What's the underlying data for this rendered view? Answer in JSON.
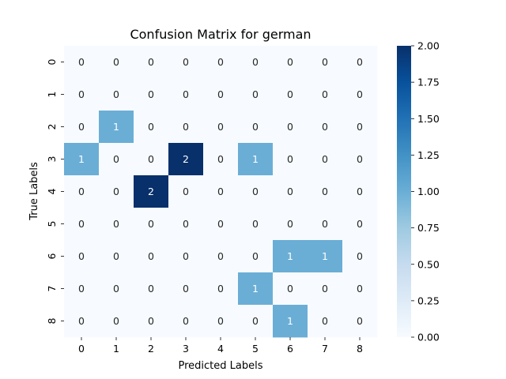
{
  "chart_data": {
    "type": "heatmap",
    "title": "Confusion Matrix for german",
    "xlabel": "Predicted Labels",
    "ylabel": "True Labels",
    "x_categories": [
      "0",
      "1",
      "2",
      "3",
      "4",
      "5",
      "6",
      "7",
      "8"
    ],
    "y_categories": [
      "0",
      "1",
      "2",
      "3",
      "4",
      "5",
      "6",
      "7",
      "8"
    ],
    "values": [
      [
        0,
        0,
        0,
        0,
        0,
        0,
        0,
        0,
        0
      ],
      [
        0,
        0,
        0,
        0,
        0,
        0,
        0,
        0,
        0
      ],
      [
        0,
        1,
        0,
        0,
        0,
        0,
        0,
        0,
        0
      ],
      [
        1,
        0,
        0,
        2,
        0,
        1,
        0,
        0,
        0
      ],
      [
        0,
        0,
        2,
        0,
        0,
        0,
        0,
        0,
        0
      ],
      [
        0,
        0,
        0,
        0,
        0,
        0,
        0,
        0,
        0
      ],
      [
        0,
        0,
        0,
        0,
        0,
        0,
        1,
        1,
        0
      ],
      [
        0,
        0,
        0,
        0,
        0,
        1,
        0,
        0,
        0
      ],
      [
        0,
        0,
        0,
        0,
        0,
        0,
        1,
        0,
        0
      ]
    ],
    "colormap": "Blues",
    "color_range": [
      0,
      2
    ],
    "colorbar_ticks": [
      "0.00",
      "0.25",
      "0.50",
      "0.75",
      "1.00",
      "1.25",
      "1.50",
      "1.75",
      "2.00"
    ],
    "colors": {
      "low": "#f7fbff",
      "mid": "#6aaed6",
      "high": "#08306b",
      "text_dark": "#262626",
      "text_light": "#ffffff"
    },
    "grid": false
  }
}
